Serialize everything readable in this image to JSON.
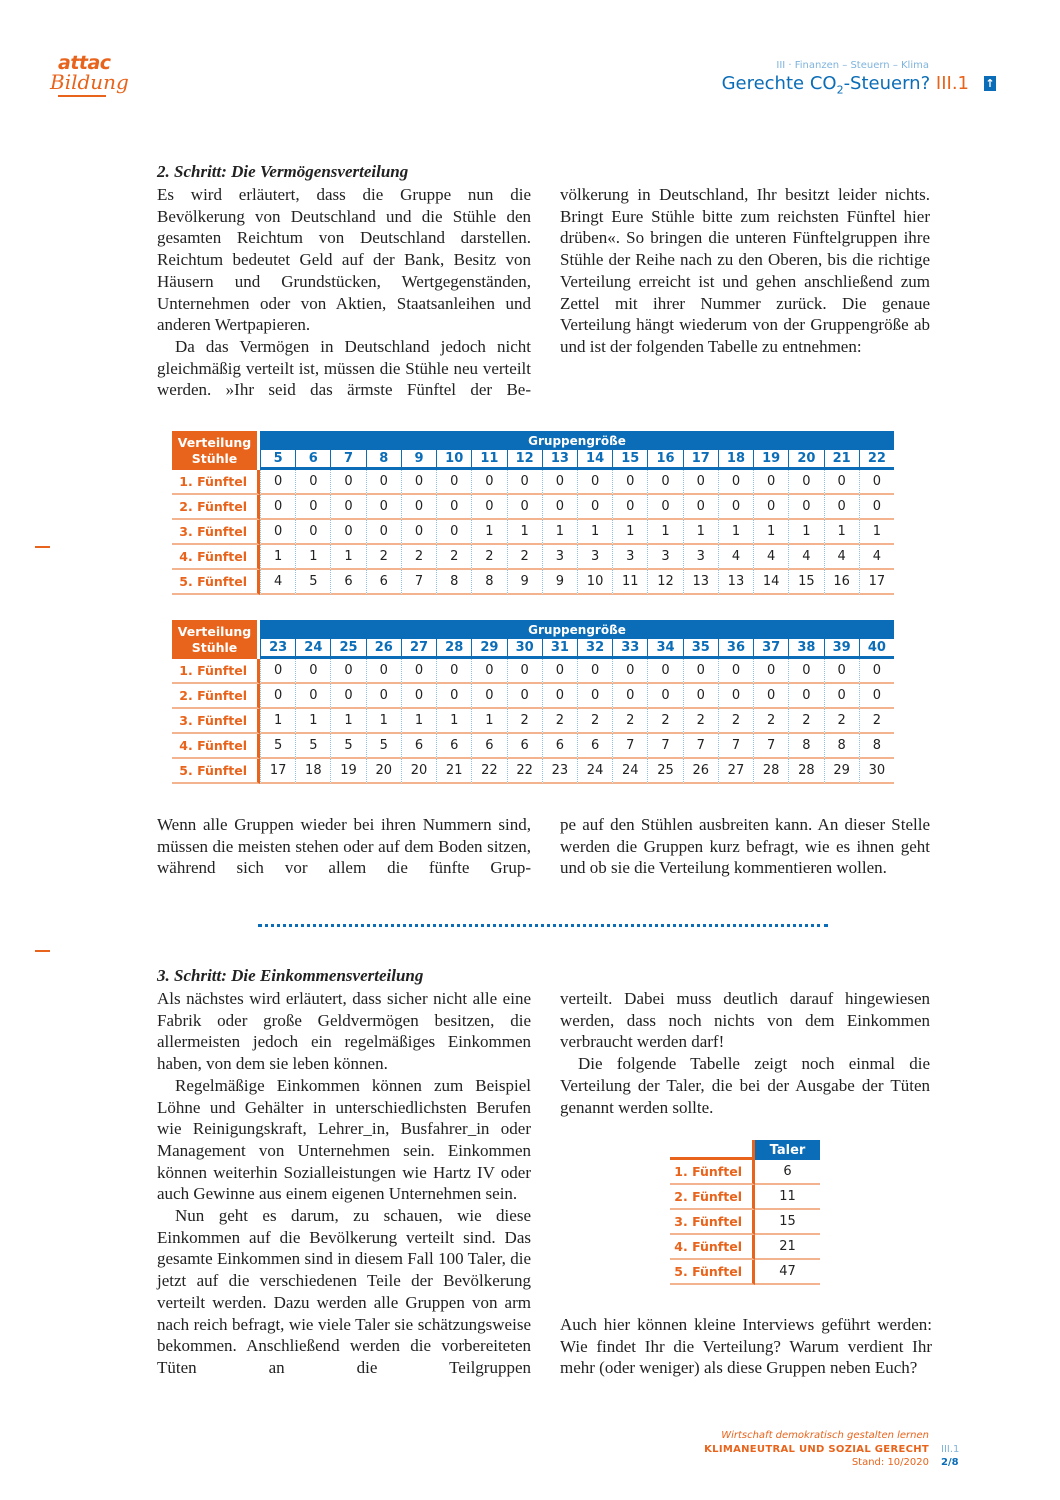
{
  "header": {
    "logo_top": "attac",
    "logo_bottom": "Bildung",
    "breadcrumb": "III · Finanzen – Steuern – Klima",
    "title_pre": "Gerechte CO",
    "title_sub": "2",
    "title_post": "-Steuern?",
    "title_num": "III.1",
    "up_icon": "arrow-up-icon"
  },
  "section2": {
    "heading": "2. Schritt: Die Vermögensverteilung",
    "left": [
      "Es wird erläutert, dass die Gruppe nun die Bevölkerung von Deutschland und die Stühle den gesamten Reichtum von Deutschland darstellen. Reichtum bedeutet Geld auf der Bank, Besitz von Häusern und Grundstücken, Wertgegenständen, Unternehmen oder von Aktien, Staatsanleihen und anderen Wertpapieren.",
      "Da das Vermögen in Deutschland jedoch nicht gleichmäßig verteilt ist, müssen die Stühle neu verteilt werden. »Ihr seid das ärmste Fünftel der Be-"
    ],
    "right": [
      "völkerung in Deutschland, Ihr besitzt leider nichts. Bringt Eure Stühle bitte zum reichsten Fünftel hier drüben«. So bringen die unteren Fünftelgruppen ihre Stühle der Reihe nach zu den Oberen, bis die richtige Verteilung erreicht ist und gehen anschließend zum Zettel mit ihrer Nummer zurück. Die genaue Verteilung hängt wiederum von der Gruppengröße ab und ist der folgenden Tabelle zu entnehmen:"
    ]
  },
  "tables": [
    {
      "corner": "Verteilung Stühle",
      "group_header": "Gruppengröße",
      "sizes": [
        "5",
        "6",
        "7",
        "8",
        "9",
        "10",
        "11",
        "12",
        "13",
        "14",
        "15",
        "16",
        "17",
        "18",
        "19",
        "20",
        "21",
        "22"
      ],
      "rows": [
        {
          "label": "1. Fünftel",
          "values": [
            "0",
            "0",
            "0",
            "0",
            "0",
            "0",
            "0",
            "0",
            "0",
            "0",
            "0",
            "0",
            "0",
            "0",
            "0",
            "0",
            "0",
            "0"
          ]
        },
        {
          "label": "2. Fünftel",
          "values": [
            "0",
            "0",
            "0",
            "0",
            "0",
            "0",
            "0",
            "0",
            "0",
            "0",
            "0",
            "0",
            "0",
            "0",
            "0",
            "0",
            "0",
            "0"
          ]
        },
        {
          "label": "3. Fünftel",
          "values": [
            "0",
            "0",
            "0",
            "0",
            "0",
            "0",
            "1",
            "1",
            "1",
            "1",
            "1",
            "1",
            "1",
            "1",
            "1",
            "1",
            "1",
            "1"
          ]
        },
        {
          "label": "4. Fünftel",
          "values": [
            "1",
            "1",
            "1",
            "2",
            "2",
            "2",
            "2",
            "2",
            "3",
            "3",
            "3",
            "3",
            "3",
            "4",
            "4",
            "4",
            "4",
            "4"
          ]
        },
        {
          "label": "5. Fünftel",
          "values": [
            "4",
            "5",
            "6",
            "6",
            "7",
            "8",
            "8",
            "9",
            "9",
            "10",
            "11",
            "12",
            "13",
            "13",
            "14",
            "15",
            "16",
            "17"
          ]
        }
      ]
    },
    {
      "corner": "Verteilung Stühle",
      "group_header": "Gruppengröße",
      "sizes": [
        "23",
        "24",
        "25",
        "26",
        "27",
        "28",
        "29",
        "30",
        "31",
        "32",
        "33",
        "34",
        "35",
        "36",
        "37",
        "38",
        "39",
        "40"
      ],
      "rows": [
        {
          "label": "1. Fünftel",
          "values": [
            "0",
            "0",
            "0",
            "0",
            "0",
            "0",
            "0",
            "0",
            "0",
            "0",
            "0",
            "0",
            "0",
            "0",
            "0",
            "0",
            "0",
            "0"
          ]
        },
        {
          "label": "2. Fünftel",
          "values": [
            "0",
            "0",
            "0",
            "0",
            "0",
            "0",
            "0",
            "0",
            "0",
            "0",
            "0",
            "0",
            "0",
            "0",
            "0",
            "0",
            "0",
            "0"
          ]
        },
        {
          "label": "3. Fünftel",
          "values": [
            "1",
            "1",
            "1",
            "1",
            "1",
            "1",
            "1",
            "2",
            "2",
            "2",
            "2",
            "2",
            "2",
            "2",
            "2",
            "2",
            "2",
            "2"
          ]
        },
        {
          "label": "4. Fünftel",
          "values": [
            "5",
            "5",
            "5",
            "5",
            "6",
            "6",
            "6",
            "6",
            "6",
            "6",
            "7",
            "7",
            "7",
            "7",
            "7",
            "8",
            "8",
            "8"
          ]
        },
        {
          "label": "5. Fünftel",
          "values": [
            "17",
            "18",
            "19",
            "20",
            "20",
            "21",
            "22",
            "22",
            "23",
            "24",
            "24",
            "25",
            "26",
            "27",
            "28",
            "28",
            "29",
            "30"
          ]
        }
      ]
    }
  ],
  "after_tables": {
    "left": [
      "Wenn alle Gruppen wieder bei ihren Nummern sind, müssen die meisten stehen oder auf dem Boden sitzen, während sich vor allem die fünfte Grup-"
    ],
    "right": [
      "pe auf den Stühlen ausbreiten kann. An dieser Stelle werden die Gruppen kurz befragt, wie es ihnen geht und ob sie die Verteilung kommentieren wollen."
    ]
  },
  "section3": {
    "heading": "3. Schritt: Die Einkommensverteilung",
    "left": [
      "Als nächstes wird erläutert, dass sicher nicht alle eine Fabrik oder große Geldvermögen besitzen, die allermeisten jedoch ein regelmäßiges Einkommen haben, von dem sie leben können.",
      "Regelmäßige Einkommen können zum Beispiel Löhne und Gehälter in unterschiedlichsten Berufen wie Reinigungskraft, Lehrer_in, Busfahrer_in oder Management von Unternehmen sein. Einkommen können weiterhin Sozialleistungen wie Hartz IV oder auch Gewinne aus einem eigenen Unternehmen sein.",
      "Nun geht es darum, zu schauen, wie diese Einkommen auf die Bevölkerung verteilt sind. Das gesamte Einkommen sind in diesem Fall 100 Taler, die jetzt auf die verschiedenen Teile der Bevölkerung verteilt werden. Dazu werden alle Gruppen von arm nach reich befragt, wie viele Taler sie schätzungsweise bekommen. Anschließend werden die vorbereiteten Tüten an die Teilgruppen"
    ],
    "right": [
      "verteilt. Dabei muss deutlich darauf hingewiesen werden, dass noch nichts von dem Einkommen verbraucht werden darf!",
      "Die folgende Tabelle zeigt noch einmal die Verteilung der Taler, die bei der Ausgabe der Tüten genannt werden sollte."
    ],
    "taler_table": {
      "header": "Taler",
      "rows": [
        {
          "label": "1. Fünftel",
          "value": "6"
        },
        {
          "label": "2. Fünftel",
          "value": "11"
        },
        {
          "label": "3. Fünftel",
          "value": "15"
        },
        {
          "label": "4. Fünftel",
          "value": "21"
        },
        {
          "label": "5. Fünftel",
          "value": "47"
        }
      ]
    },
    "closing": [
      "Auch hier können kleine Interviews geführt werden: Wie findet Ihr die Verteilung? Warum verdient Ihr mehr (oder weniger) als diese Gruppen neben Euch?"
    ]
  },
  "footer": {
    "line1": "Wirtschaft demokratisch gestalten lernen",
    "line2": "KLIMANEUTRAL UND SOZIAL GERECHT",
    "line3": "Stand: 10/2020",
    "code": "III.1",
    "page": "2/8"
  },
  "colors": {
    "orange": "#e8641c",
    "blue": "#0b6db7"
  }
}
